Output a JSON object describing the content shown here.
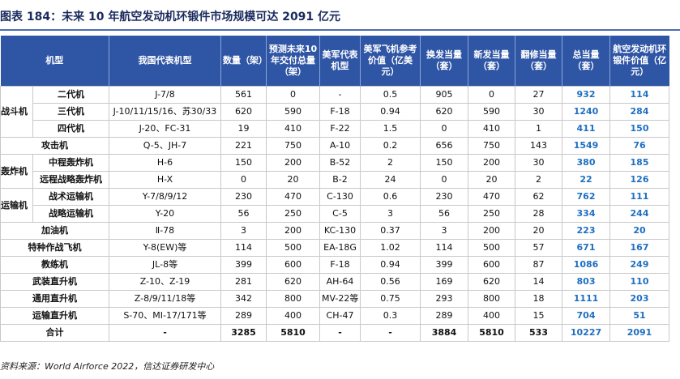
{
  "title": "图表 184：未来 10 年航空发动机环锻件市场规模可达 2091 亿元",
  "headers": [
    "机型",
    "我国代表机型",
    "数量（架）",
    "预测未来10年交付总量（架）",
    "美军代表机型",
    "美军飞机参考价值（亿美元）",
    "换发当量（套）",
    "新发当量（套）",
    "翻修当量（套）",
    "总当量（套）",
    "航空发动机环锻件价值（亿元）"
  ],
  "groups": {
    "fighter": "战斗机",
    "bomber": "轰炸机",
    "transport": "运输机"
  },
  "rows": [
    {
      "type": "二代机",
      "cn": "J-7/8",
      "qty": "561",
      "fut": "0",
      "us": "-",
      "val": "0.5",
      "rep": "905",
      "new": "0",
      "ovh": "27",
      "tot": "932",
      "ring": "114"
    },
    {
      "type": "三代机",
      "cn": "J-10/11/15/16、苏30/33",
      "qty": "620",
      "fut": "590",
      "us": "F-18",
      "val": "0.94",
      "rep": "620",
      "new": "590",
      "ovh": "30",
      "tot": "1240",
      "ring": "284"
    },
    {
      "type": "四代机",
      "cn": "J-20、FC-31",
      "qty": "19",
      "fut": "410",
      "us": "F-22",
      "val": "1.5",
      "rep": "0",
      "new": "410",
      "ovh": "1",
      "tot": "411",
      "ring": "150"
    },
    {
      "type": "攻击机",
      "cn": "Q-5、JH-7",
      "qty": "221",
      "fut": "750",
      "us": "A-10",
      "val": "0.2",
      "rep": "656",
      "new": "750",
      "ovh": "143",
      "tot": "1549",
      "ring": "76"
    },
    {
      "type": "中程轰炸机",
      "cn": "H-6",
      "qty": "150",
      "fut": "200",
      "us": "B-52",
      "val": "2",
      "rep": "150",
      "new": "200",
      "ovh": "30",
      "tot": "380",
      "ring": "185"
    },
    {
      "type": "远程战略轰炸机",
      "cn": "H-X",
      "qty": "0",
      "fut": "20",
      "us": "B-2",
      "val": "24",
      "rep": "0",
      "new": "20",
      "ovh": "2",
      "tot": "22",
      "ring": "126"
    },
    {
      "type": "战术运输机",
      "cn": "Y-7/8/9/12",
      "qty": "230",
      "fut": "470",
      "us": "C-130",
      "val": "0.6",
      "rep": "230",
      "new": "470",
      "ovh": "62",
      "tot": "762",
      "ring": "111"
    },
    {
      "type": "战略运输机",
      "cn": "Y-20",
      "qty": "56",
      "fut": "250",
      "us": "C-5",
      "val": "3",
      "rep": "56",
      "new": "250",
      "ovh": "28",
      "tot": "334",
      "ring": "244"
    },
    {
      "type": "加油机",
      "cn": "Ⅱ-78",
      "qty": "3",
      "fut": "200",
      "us": "KC-130",
      "val": "0.37",
      "rep": "3",
      "new": "200",
      "ovh": "20",
      "tot": "223",
      "ring": "20"
    },
    {
      "type": "特种作战飞机",
      "cn": "Y-8(EW)等",
      "qty": "114",
      "fut": "500",
      "us": "EA-18G",
      "val": "1.02",
      "rep": "114",
      "new": "500",
      "ovh": "57",
      "tot": "671",
      "ring": "167"
    },
    {
      "type": "教练机",
      "cn": "JL-8等",
      "qty": "399",
      "fut": "600",
      "us": "F-18",
      "val": "0.94",
      "rep": "399",
      "new": "600",
      "ovh": "87",
      "tot": "1086",
      "ring": "249"
    },
    {
      "type": "武装直升机",
      "cn": "Z-10、Z-19",
      "qty": "281",
      "fut": "620",
      "us": "AH-64",
      "val": "0.56",
      "rep": "169",
      "new": "620",
      "ovh": "14",
      "tot": "803",
      "ring": "110"
    },
    {
      "type": "通用直升机",
      "cn": "Z-8/9/11/18等",
      "qty": "342",
      "fut": "800",
      "us": "MV-22等",
      "val": "0.75",
      "rep": "293",
      "new": "800",
      "ovh": "18",
      "tot": "1111",
      "ring": "203"
    },
    {
      "type": "运输直升机",
      "cn": "S-70、MI-17/171等",
      "qty": "289",
      "fut": "400",
      "us": "CH-47",
      "val": "0.3",
      "rep": "289",
      "new": "400",
      "ovh": "15",
      "tot": "704",
      "ring": "51"
    },
    {
      "type": "合计",
      "cn": "-",
      "qty": "3285",
      "fut": "5810",
      "us": "-",
      "val": "-",
      "rep": "3884",
      "new": "5810",
      "ovh": "533",
      "tot": "10227",
      "ring": "2091"
    }
  ],
  "source": "资料来源：World Airforce 2022，信达证券研发中心"
}
